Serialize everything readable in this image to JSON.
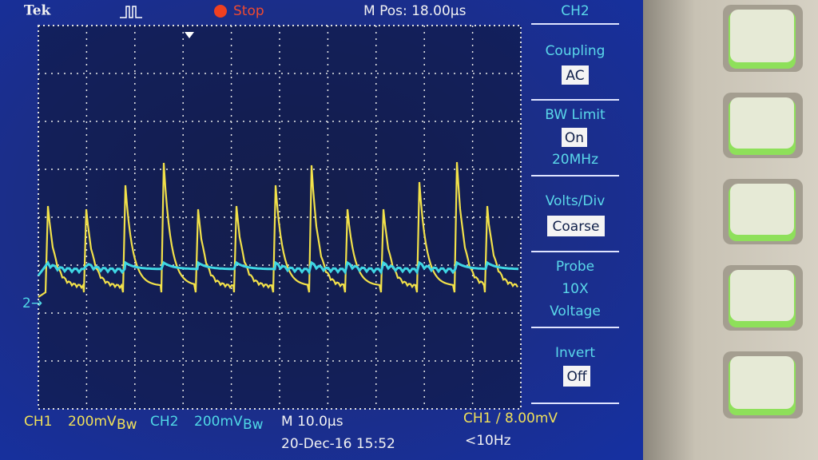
{
  "header": {
    "brand": "Tek",
    "status": "Stop",
    "position": "M Pos: 18.00µs",
    "channel": "CH2"
  },
  "menu": [
    {
      "label": "Coupling",
      "value": "AC"
    },
    {
      "label": "BW Limit",
      "value": "On",
      "extra": "20MHz"
    },
    {
      "label": "Volts/Div",
      "value": "Coarse"
    },
    {
      "label": "Probe",
      "value": "10X",
      "extra": "Voltage"
    },
    {
      "label": "Invert",
      "value": "Off"
    }
  ],
  "footer": {
    "ch1": "CH1",
    "ch1_scale": "200mV",
    "ch1_bw": "Bw",
    "ch2": "CH2",
    "ch2_scale": "200mV",
    "ch2_bw": "Bw",
    "timebase": "M 10.0µs",
    "trigger": "CH1 ∕ 8.00mV",
    "date": "20-Dec-16 15:52",
    "frequency": "<10Hz"
  }
}
